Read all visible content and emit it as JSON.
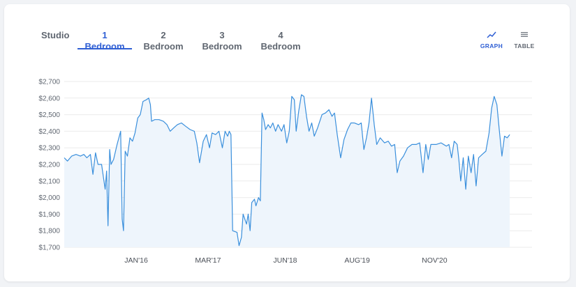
{
  "tabs": [
    {
      "label": "Studio",
      "active": false
    },
    {
      "label": "1 Bedroom",
      "active": true
    },
    {
      "label": "2 Bedroom",
      "active": false
    },
    {
      "label": "3 Bedroom",
      "active": false
    },
    {
      "label": "4 Bedroom",
      "active": false
    }
  ],
  "view_toggle": {
    "graph_label": "GRAPH",
    "table_label": "TABLE",
    "active": "graph"
  },
  "colors": {
    "accent": "#2f5fd4",
    "line": "#3a8fdc",
    "area": "#eef5fc",
    "grid": "#ebebeb"
  },
  "chart_data": {
    "type": "area",
    "title": "",
    "xlabel": "",
    "ylabel": "",
    "ylim": [
      1700,
      2700
    ],
    "xlim": [
      "2014-11",
      "2022-06"
    ],
    "yticks": [
      1700,
      1800,
      1900,
      2000,
      2100,
      2200,
      2300,
      2400,
      2500,
      2600,
      2700
    ],
    "ytick_labels": [
      "$1,700",
      "$1,800",
      "$1,900",
      "$2,000",
      "$2,100",
      "$2,200",
      "$2,300",
      "$2,400",
      "$2,500",
      "$2,600",
      "$2,700"
    ],
    "xticks": [
      "2016-01",
      "2017-03",
      "2018-06",
      "2019-08",
      "2020-11"
    ],
    "xtick_labels": [
      "JAN'16",
      "MAR'17",
      "JUN'18",
      "AUG'19",
      "NOV'20"
    ],
    "grid": true,
    "series": [
      {
        "values": [
          [
            "2014-11-01",
            2240
          ],
          [
            "2014-11-20",
            2220
          ],
          [
            "2014-12-15",
            2250
          ],
          [
            "2015-01-10",
            2260
          ],
          [
            "2015-02-05",
            2250
          ],
          [
            "2015-02-25",
            2260
          ],
          [
            "2015-03-15",
            2240
          ],
          [
            "2015-04-05",
            2260
          ],
          [
            "2015-04-20",
            2140
          ],
          [
            "2015-05-05",
            2270
          ],
          [
            "2015-05-20",
            2200
          ],
          [
            "2015-06-10",
            2200
          ],
          [
            "2015-07-01",
            2050
          ],
          [
            "2015-07-10",
            2160
          ],
          [
            "2015-07-18",
            1830
          ],
          [
            "2015-07-28",
            2290
          ],
          [
            "2015-08-05",
            2200
          ],
          [
            "2015-08-20",
            2230
          ],
          [
            "2015-09-10",
            2320
          ],
          [
            "2015-10-01",
            2400
          ],
          [
            "2015-10-10",
            1870
          ],
          [
            "2015-10-18",
            1800
          ],
          [
            "2015-10-28",
            2280
          ],
          [
            "2015-11-10",
            2250
          ],
          [
            "2015-11-25",
            2360
          ],
          [
            "2015-12-10",
            2340
          ],
          [
            "2015-12-25",
            2390
          ],
          [
            "2016-01-10",
            2480
          ],
          [
            "2016-01-25",
            2500
          ],
          [
            "2016-02-10",
            2580
          ],
          [
            "2016-03-01",
            2590
          ],
          [
            "2016-03-15",
            2600
          ],
          [
            "2016-03-25",
            2560
          ],
          [
            "2016-04-01",
            2460
          ],
          [
            "2016-04-20",
            2470
          ],
          [
            "2016-05-15",
            2470
          ],
          [
            "2016-06-10",
            2460
          ],
          [
            "2016-07-01",
            2440
          ],
          [
            "2016-07-20",
            2400
          ],
          [
            "2016-08-10",
            2420
          ],
          [
            "2016-09-01",
            2440
          ],
          [
            "2016-09-25",
            2450
          ],
          [
            "2016-10-20",
            2430
          ],
          [
            "2016-11-15",
            2410
          ],
          [
            "2016-12-10",
            2400
          ],
          [
            "2016-12-25",
            2330
          ],
          [
            "2017-01-10",
            2210
          ],
          [
            "2017-02-01",
            2340
          ],
          [
            "2017-02-20",
            2380
          ],
          [
            "2017-03-10",
            2300
          ],
          [
            "2017-03-25",
            2390
          ],
          [
            "2017-04-15",
            2380
          ],
          [
            "2017-05-05",
            2400
          ],
          [
            "2017-05-25",
            2300
          ],
          [
            "2017-06-10",
            2400
          ],
          [
            "2017-06-25",
            2370
          ],
          [
            "2017-07-05",
            2400
          ],
          [
            "2017-07-15",
            2380
          ],
          [
            "2017-07-25",
            1800
          ],
          [
            "2017-08-20",
            1790
          ],
          [
            "2017-09-01",
            1710
          ],
          [
            "2017-09-15",
            1760
          ],
          [
            "2017-09-25",
            1900
          ],
          [
            "2017-10-15",
            1840
          ],
          [
            "2017-10-25",
            1900
          ],
          [
            "2017-11-05",
            1800
          ],
          [
            "2017-11-15",
            1970
          ],
          [
            "2017-12-01",
            1990
          ],
          [
            "2017-12-10",
            1950
          ],
          [
            "2017-12-25",
            2000
          ],
          [
            "2018-01-05",
            1980
          ],
          [
            "2018-01-15",
            2510
          ],
          [
            "2018-01-25",
            2470
          ],
          [
            "2018-02-05",
            2410
          ],
          [
            "2018-02-20",
            2440
          ],
          [
            "2018-03-05",
            2420
          ],
          [
            "2018-03-20",
            2450
          ],
          [
            "2018-04-05",
            2400
          ],
          [
            "2018-04-20",
            2440
          ],
          [
            "2018-05-10",
            2400
          ],
          [
            "2018-05-25",
            2440
          ],
          [
            "2018-06-10",
            2330
          ],
          [
            "2018-06-25",
            2400
          ],
          [
            "2018-07-10",
            2610
          ],
          [
            "2018-07-25",
            2590
          ],
          [
            "2018-08-05",
            2400
          ],
          [
            "2018-08-20",
            2520
          ],
          [
            "2018-09-05",
            2620
          ],
          [
            "2018-09-20",
            2610
          ],
          [
            "2018-10-05",
            2490
          ],
          [
            "2018-10-20",
            2400
          ],
          [
            "2018-11-05",
            2450
          ],
          [
            "2018-11-20",
            2370
          ],
          [
            "2018-12-10",
            2420
          ],
          [
            "2019-01-05",
            2500
          ],
          [
            "2019-01-25",
            2510
          ],
          [
            "2019-02-15",
            2530
          ],
          [
            "2019-03-05",
            2490
          ],
          [
            "2019-03-20",
            2510
          ],
          [
            "2019-04-05",
            2380
          ],
          [
            "2019-04-25",
            2240
          ],
          [
            "2019-05-15",
            2350
          ],
          [
            "2019-06-05",
            2410
          ],
          [
            "2019-06-25",
            2450
          ],
          [
            "2019-07-15",
            2450
          ],
          [
            "2019-08-10",
            2440
          ],
          [
            "2019-08-25",
            2450
          ],
          [
            "2019-09-10",
            2290
          ],
          [
            "2019-09-25",
            2360
          ],
          [
            "2019-10-10",
            2450
          ],
          [
            "2019-10-25",
            2600
          ],
          [
            "2019-11-10",
            2440
          ],
          [
            "2019-11-25",
            2320
          ],
          [
            "2019-12-15",
            2360
          ],
          [
            "2020-01-10",
            2330
          ],
          [
            "2020-02-01",
            2340
          ],
          [
            "2020-02-20",
            2310
          ],
          [
            "2020-03-10",
            2320
          ],
          [
            "2020-03-25",
            2150
          ],
          [
            "2020-04-10",
            2220
          ],
          [
            "2020-05-01",
            2250
          ],
          [
            "2020-05-25",
            2300
          ],
          [
            "2020-06-20",
            2320
          ],
          [
            "2020-07-15",
            2320
          ],
          [
            "2020-08-05",
            2330
          ],
          [
            "2020-08-25",
            2150
          ],
          [
            "2020-09-10",
            2320
          ],
          [
            "2020-09-25",
            2230
          ],
          [
            "2020-10-10",
            2320
          ],
          [
            "2020-11-10",
            2320
          ],
          [
            "2020-12-10",
            2330
          ],
          [
            "2021-01-10",
            2310
          ],
          [
            "2021-01-25",
            2320
          ],
          [
            "2021-02-10",
            2240
          ],
          [
            "2021-02-25",
            2340
          ],
          [
            "2021-03-15",
            2320
          ],
          [
            "2021-03-25",
            2230
          ],
          [
            "2021-04-05",
            2100
          ],
          [
            "2021-04-20",
            2240
          ],
          [
            "2021-05-05",
            2050
          ],
          [
            "2021-05-20",
            2250
          ],
          [
            "2021-06-05",
            2150
          ],
          [
            "2021-06-20",
            2260
          ],
          [
            "2021-07-05",
            2070
          ],
          [
            "2021-07-20",
            2240
          ],
          [
            "2021-08-10",
            2260
          ],
          [
            "2021-09-01",
            2280
          ],
          [
            "2021-09-20",
            2390
          ],
          [
            "2021-10-05",
            2540
          ],
          [
            "2021-10-20",
            2610
          ],
          [
            "2021-11-05",
            2560
          ],
          [
            "2021-11-20",
            2400
          ],
          [
            "2021-12-05",
            2250
          ],
          [
            "2021-12-20",
            2370
          ],
          [
            "2022-01-05",
            2360
          ],
          [
            "2022-01-20",
            2380
          ]
        ]
      }
    ]
  }
}
